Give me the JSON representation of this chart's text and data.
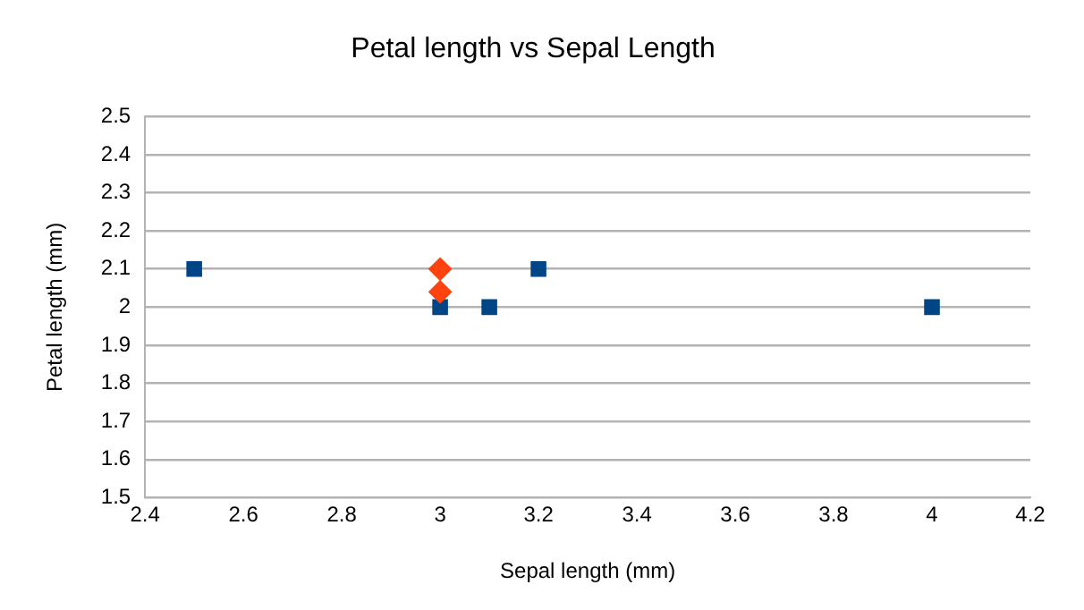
{
  "chart_data": {
    "type": "scatter",
    "title": "Petal length vs Sepal Length",
    "xlabel": "Sepal length (mm)",
    "ylabel": "Petal length (mm)",
    "xlim": [
      2.4,
      4.2
    ],
    "xticks": [
      2.4,
      2.6,
      2.8,
      3,
      3.2,
      3.4,
      3.6,
      3.8,
      4,
      4.2
    ],
    "ylim": [
      1.5,
      2.5
    ],
    "yticks": [
      1.5,
      1.6,
      1.7,
      1.8,
      1.9,
      2,
      2.1,
      2.2,
      2.3,
      2.4,
      2.5
    ],
    "grid": "y",
    "legend": false,
    "series": [
      {
        "color": "#ff420e",
        "marker": "diamond",
        "x": [
          3,
          3
        ],
        "values": [
          2.1,
          2.04
        ]
      },
      {
        "color": "#004586",
        "marker": "square",
        "x": [
          2.5,
          3,
          3.1,
          3.2,
          4
        ],
        "values": [
          2.1,
          2,
          2,
          2.1,
          2
        ]
      }
    ]
  }
}
